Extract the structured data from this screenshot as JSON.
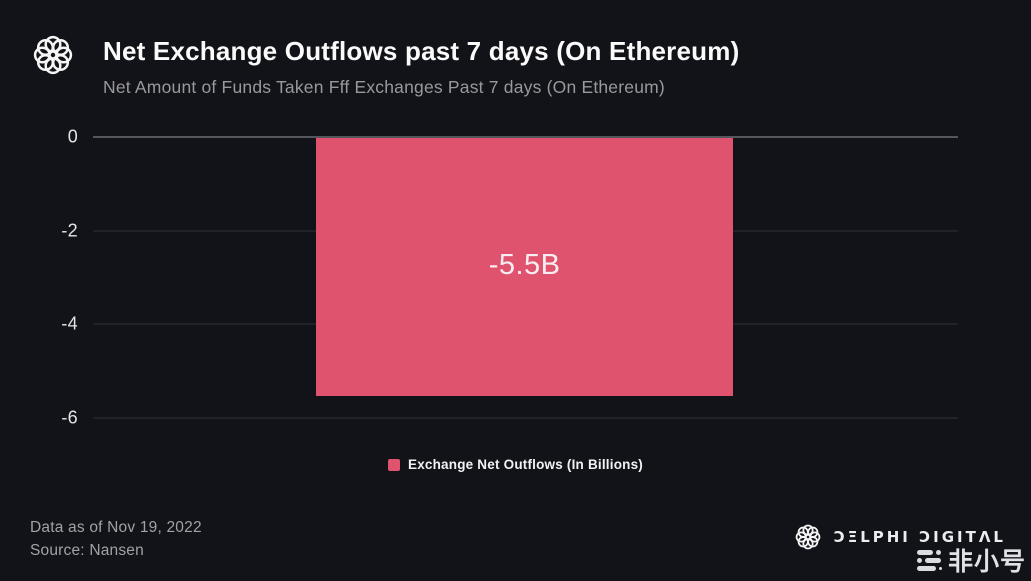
{
  "header": {
    "title": "Net Exchange Outflows past 7 days (On Ethereum)",
    "subtitle": "Net Amount of Funds Taken Fff Exchanges Past 7 days (On Ethereum)"
  },
  "chart_data": {
    "type": "bar",
    "title": "Net Exchange Outflows past 7 days (On Ethereum)",
    "subtitle": "Net Amount of Funds Taken Fff Exchanges Past 7 days (On Ethereum)",
    "categories": [
      "Exchange Net Outflows"
    ],
    "values": [
      -5.5
    ],
    "bar_label": "-5.5B",
    "xlabel": "",
    "ylabel": "",
    "ylim": [
      -6,
      0
    ],
    "yticks": [
      0,
      -2,
      -4,
      -6
    ],
    "grid": true,
    "bar_color": "#e0536e",
    "legend": {
      "position": "bottom",
      "entries": [
        {
          "label": "Exchange Net Outflows (In Billions)",
          "color": "#e0536e"
        }
      ]
    }
  },
  "footer": {
    "data_as_of": "Data as of Nov 19, 2022",
    "source": "Source: Nansen",
    "brand_wordmark": "ƆΞLPHI ƆIGITΛL",
    "watermark_text": "非小号"
  },
  "colors": {
    "background": "#121318",
    "title": "#fafafa",
    "subtitle": "#98989d",
    "bar": "#e0536e",
    "tick_label": "#e4e4e6",
    "gridline": "#2f3036",
    "zero_line": "#55565c",
    "footer_text": "#a2a2a6"
  }
}
